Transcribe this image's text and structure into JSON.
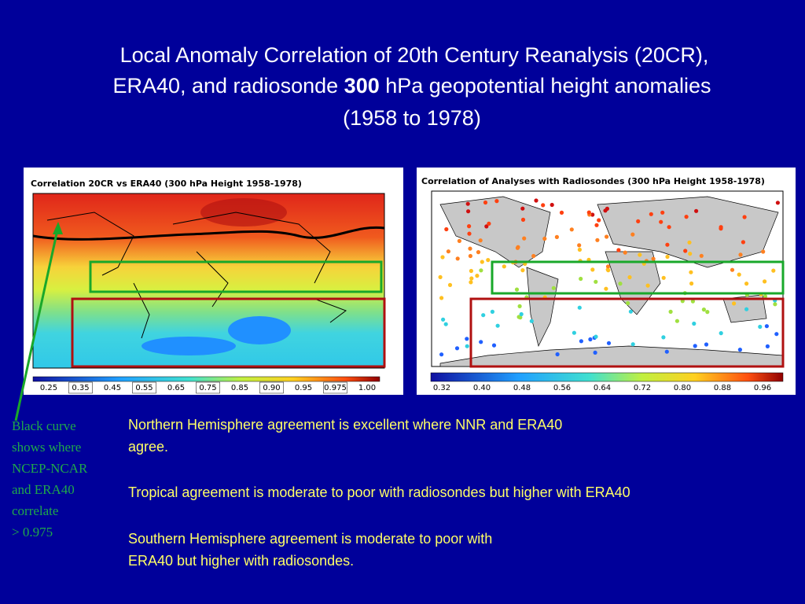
{
  "title": {
    "line1": "Local Anomaly Correlation of 20th Century Reanalysis (20CR),",
    "line2_before": "ERA40, and radiosonde",
    "line2_bold": "300",
    "line2_after": "hPa geopotential height anomalies",
    "line3": "(1958 to 1978)"
  },
  "left_map": {
    "title": "Correlation 20CR vs ERA40 (300 hPa Height 1958-1978)",
    "colorbar_labels": [
      "0.25",
      "0.35",
      "0.45",
      "0.55",
      "0.65",
      "0.75",
      "0.85",
      "0.90",
      "0.95",
      "0.975",
      "1.00"
    ]
  },
  "right_map": {
    "title": "Correlation of Analyses with Radiosondes (300 hPa Height 1958-1978)",
    "colorbar_labels": [
      "0.32",
      "0.40",
      "0.48",
      "0.56",
      "0.64",
      "0.72",
      "0.80",
      "0.88",
      "0.96"
    ]
  },
  "side_note": [
    "Black curve",
    "shows where",
    "NCEP-NCAR",
    "and ERA40",
    "correlate",
    "> 0.975"
  ],
  "paragraphs": [
    [
      "Northern Hemisphere agreement is excellent where NNR and ERA40",
      "agree."
    ],
    [
      "Tropical agreement is moderate to poor with radiosondes but higher with ERA40"
    ],
    [
      "Southern Hemisphere agreement is moderate to poor with",
      "ERA40 but higher with radiosondes."
    ]
  ]
}
